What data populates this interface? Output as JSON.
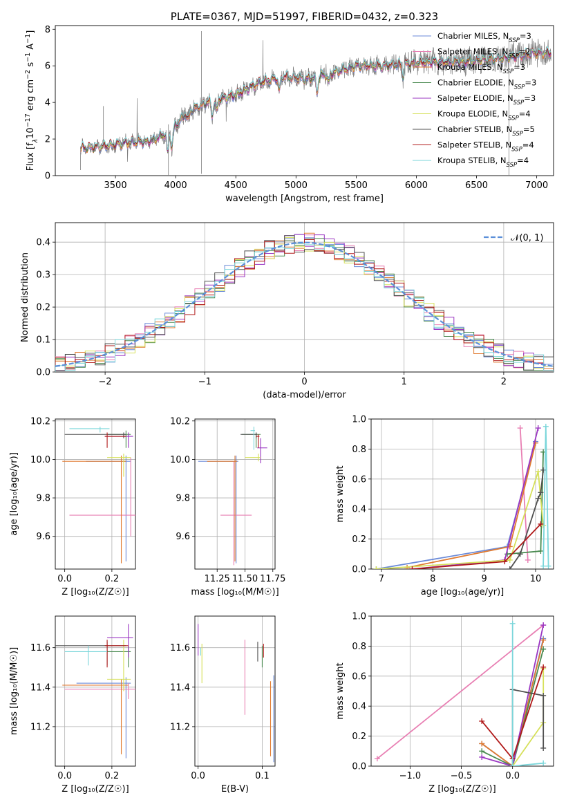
{
  "title": "PLATE=0367, MJD=51997, FIBERID=0432, z=0.323",
  "colors": {
    "Chabrier MILES": "#6a8ad8",
    "Salpeter MILES": "#e87fb3",
    "Kroupa MILES": "#e07a30",
    "Chabrier ELODIE": "#4a8a50",
    "Salpeter ELODIE": "#9a35c2",
    "Kroupa ELODIE": "#d6e05a",
    "Chabrier STELIB": "#505050",
    "Salpeter STELIB": "#b01818",
    "Kroupa STELIB": "#7ad6da",
    "data": "#7f7f7f",
    "normal": "#5b8fd9"
  },
  "chart_data": [
    {
      "id": "spectrum",
      "type": "line",
      "title": "PLATE=0367, MJD=51997, FIBERID=0432, z=0.323",
      "xlabel": "wavelength [Angstrom, rest frame]",
      "ylabel_parts": [
        "Flux [f",
        "λ",
        "10",
        "−17",
        " erg cm",
        "−2",
        " s",
        "−1",
        " A",
        "−1",
        "]"
      ],
      "xlim": [
        3000,
        7140
      ],
      "ylim": [
        0,
        8.2
      ],
      "xticks": [
        "3500",
        "4000",
        "4500",
        "5000",
        "5500",
        "6000",
        "6500",
        "7000"
      ],
      "yticks": [
        "0",
        "2",
        "4",
        "6",
        "8"
      ],
      "continuum_x": [
        3210,
        3400,
        3600,
        3800,
        3950,
        4100,
        4300,
        4500,
        4700,
        4900,
        5100,
        5300,
        5500,
        5700,
        5900,
        6100,
        6300,
        6500,
        6700,
        6800,
        7000,
        7120
      ],
      "continuum_y": [
        1.5,
        1.6,
        1.8,
        1.9,
        2.4,
        3.5,
        4.1,
        4.4,
        5.1,
        5.4,
        5.3,
        5.6,
        6.0,
        6.0,
        6.1,
        6.2,
        6.2,
        6.3,
        6.4,
        6.5,
        6.7,
        6.7
      ],
      "legend": [
        {
          "name": "Chabrier MILES",
          "parts": [
            "Chabrier MILES, N",
            "SSP",
            "=3"
          ]
        },
        {
          "name": "Salpeter MILES",
          "parts": [
            "Salpeter MILES, N",
            "SSP",
            "=2"
          ]
        },
        {
          "name": "Kroupa MILES",
          "parts": [
            "Kroupa MILES, N",
            "SSP",
            "=3"
          ]
        },
        {
          "name": "Chabrier ELODIE",
          "parts": [
            "Chabrier ELODIE, N",
            "SSP",
            "=3"
          ]
        },
        {
          "name": "Salpeter ELODIE",
          "parts": [
            "Salpeter ELODIE, N",
            "SSP",
            "=3"
          ]
        },
        {
          "name": "Kroupa ELODIE",
          "parts": [
            "Kroupa ELODIE, N",
            "SSP",
            "=4"
          ]
        },
        {
          "name": "Chabrier STELIB",
          "parts": [
            "Chabrier STELIB, N",
            "SSP",
            "=5"
          ]
        },
        {
          "name": "Salpeter STELIB",
          "parts": [
            "Salpeter STELIB, N",
            "SSP",
            "=4"
          ]
        },
        {
          "name": "Kroupa STELIB",
          "parts": [
            "Kroupa STELIB, N",
            "SSP",
            "=4"
          ]
        }
      ]
    },
    {
      "id": "residuals",
      "type": "histogram",
      "xlabel": "(data-model)/error",
      "ylabel": "Normed distribution",
      "xlim": [
        -2.5,
        2.5
      ],
      "ylim": [
        0,
        0.46
      ],
      "xticks": [
        "−2",
        "−1",
        "0",
        "1",
        "2"
      ],
      "yticks": [
        "0.0",
        "0.1",
        "0.2",
        "0.3",
        "0.4"
      ],
      "legend": "𝒩(0, 1)",
      "bin_edges_start": -2.5,
      "bin_width": 0.1,
      "bins": 50
    },
    {
      "id": "age_vs_Z",
      "type": "errorbar",
      "xlabel": "Z [log₁₀(Z/Z☉)]",
      "ylabel": "age  [log₁₀(age/yr)]",
      "xlim": [
        -0.04,
        0.3
      ],
      "ylim": [
        9.43,
        10.21
      ],
      "xticks": [
        "0.0",
        "0.2"
      ],
      "yticks": [
        "9.6",
        "9.8",
        "10.0",
        "10.2"
      ],
      "points": [
        {
          "name": "Chabrier MILES",
          "x": 0.26,
          "y": 9.99,
          "xerr": [
            0.17,
            0.02
          ],
          "yerr": [
            0.52,
            0.03
          ]
        },
        {
          "name": "Salpeter MILES",
          "x": 0.28,
          "y": 9.71,
          "xerr": [
            0.26,
            0.03
          ],
          "yerr": [
            0.11,
            0.3
          ]
        },
        {
          "name": "Kroupa MILES",
          "x": 0.24,
          "y": 9.99,
          "xerr": [
            0.25,
            0.02
          ],
          "yerr": [
            0.53,
            0.03
          ]
        },
        {
          "name": "Chabrier ELODIE",
          "x": 0.26,
          "y": 10.13,
          "xerr": [
            0.08,
            0.02
          ],
          "yerr": [
            0.07,
            0.02
          ]
        },
        {
          "name": "Salpeter ELODIE",
          "x": 0.27,
          "y": 10.12,
          "xerr": [
            0.1,
            0.02
          ],
          "yerr": [
            0.06,
            0.02
          ]
        },
        {
          "name": "Kroupa ELODIE",
          "x": 0.25,
          "y": 10.01,
          "xerr": [
            0.07,
            0.03
          ],
          "yerr": [
            0.1,
            0.02
          ]
        },
        {
          "name": "Chabrier STELIB",
          "x": 0.25,
          "y": 10.13,
          "xerr": [
            0.25,
            0.01
          ],
          "yerr": [
            0.02,
            0.01
          ]
        },
        {
          "name": "Salpeter STELIB",
          "x": 0.18,
          "y": 10.12,
          "xerr": [
            0.01,
            0.08
          ],
          "yerr": [
            0.06,
            0.02
          ]
        },
        {
          "name": "Kroupa STELIB",
          "x": 0.15,
          "y": 10.16,
          "xerr": [
            0.13,
            0.04
          ],
          "yerr": [
            0.02,
            0.01
          ]
        }
      ]
    },
    {
      "id": "age_vs_mass",
      "type": "errorbar",
      "xlabel": "mass [log₁₀(M/M☉)]",
      "ylabel": "",
      "xlim": [
        11.05,
        11.77
      ],
      "ylim": [
        9.43,
        10.21
      ],
      "xticks": [
        "11.25",
        "11.50",
        "11.75"
      ],
      "yticks": [
        "9.6",
        "9.8",
        "10.0",
        "10.2"
      ],
      "points": [
        {
          "name": "Chabrier MILES",
          "x": 11.42,
          "y": 9.99,
          "xerr": [
            0.34,
            0.02
          ],
          "yerr": [
            0.53,
            0.03
          ]
        },
        {
          "name": "Salpeter MILES",
          "x": 11.4,
          "y": 9.71,
          "xerr": [
            0.12,
            0.16
          ],
          "yerr": [
            0.26,
            0.28
          ]
        },
        {
          "name": "Kroupa MILES",
          "x": 11.41,
          "y": 9.99,
          "xerr": [
            0.25,
            0.02
          ],
          "yerr": [
            0.52,
            0.03
          ]
        },
        {
          "name": "Chabrier ELODIE",
          "x": 11.6,
          "y": 10.13,
          "xerr": [
            0.13,
            0.04
          ],
          "yerr": [
            0.07,
            0.01
          ]
        },
        {
          "name": "Salpeter ELODIE",
          "x": 11.64,
          "y": 10.06,
          "xerr": [
            0.03,
            0.06
          ],
          "yerr": [
            0.08,
            0.05
          ]
        },
        {
          "name": "Kroupa ELODIE",
          "x": 11.62,
          "y": 10.01,
          "xerr": [
            0.12,
            0.02
          ],
          "yerr": [
            0.02,
            0.02
          ]
        },
        {
          "name": "Chabrier STELIB",
          "x": 11.6,
          "y": 10.13,
          "xerr": [
            0.14,
            0.01
          ],
          "yerr": [
            0.02,
            0.01
          ]
        },
        {
          "name": "Salpeter STELIB",
          "x": 11.62,
          "y": 10.12,
          "xerr": [
            0.02,
            0.01
          ],
          "yerr": [
            0.06,
            0.01
          ]
        },
        {
          "name": "Kroupa STELIB",
          "x": 11.58,
          "y": 10.15,
          "xerr": [
            0.03,
            0.01
          ],
          "yerr": [
            0.1,
            0.02
          ]
        }
      ]
    },
    {
      "id": "massweight_vs_age",
      "type": "line",
      "xlabel": "age  [log₁₀(age/yr)]",
      "ylabel": "mass weight",
      "xlim": [
        6.8,
        10.35
      ],
      "ylim": [
        0,
        1.0
      ],
      "xticks": [
        "7",
        "8",
        "9",
        "10"
      ],
      "yticks": [
        "0.0",
        "0.2",
        "0.4",
        "0.6",
        "0.8",
        "1.0"
      ],
      "series": [
        {
          "name": "Chabrier MILES",
          "x": [
            6.9,
            9.45,
            10.0
          ],
          "y": [
            0.0,
            0.15,
            0.85
          ]
        },
        {
          "name": "Salpeter MILES",
          "x": [
            9.7,
            9.85
          ],
          "y": [
            0.94,
            0.06
          ]
        },
        {
          "name": "Kroupa MILES",
          "x": [
            7.5,
            9.5,
            10.0
          ],
          "y": [
            0.01,
            0.15,
            0.84
          ]
        },
        {
          "name": "Chabrier ELODIE",
          "x": [
            9.45,
            10.1,
            10.15
          ],
          "y": [
            0.1,
            0.12,
            0.78
          ]
        },
        {
          "name": "Salpeter ELODIE",
          "x": [
            7.6,
            9.4,
            10.05
          ],
          "y": [
            0.0,
            0.06,
            0.94
          ]
        },
        {
          "name": "Kroupa ELODIE",
          "x": [
            6.9,
            9.5,
            10.05,
            10.15
          ],
          "y": [
            0.0,
            0.06,
            0.65,
            0.29
          ]
        },
        {
          "name": "Chabrier STELIB",
          "x": [
            9.5,
            9.7,
            10.05,
            10.1,
            10.15
          ],
          "y": [
            0.0,
            0.1,
            0.47,
            0.51,
            0.66
          ]
        },
        {
          "name": "Salpeter STELIB",
          "x": [
            7.6,
            9.4,
            10.1
          ],
          "y": [
            0.0,
            0.05,
            0.3
          ]
        },
        {
          "name": "Kroupa STELIB",
          "x": [
            10.15,
            10.2,
            10.25
          ],
          "y": [
            0.02,
            0.95,
            0.02
          ]
        }
      ]
    },
    {
      "id": "mass_vs_Z",
      "type": "errorbar",
      "xlabel": "Z [log₁₀(Z/Z☉)]",
      "ylabel": "mass [log₁₀(M/M☉)]",
      "xlim": [
        -0.04,
        0.3
      ],
      "ylim": [
        11.0,
        11.76
      ],
      "xticks": [
        "0.0",
        "0.2"
      ],
      "yticks": [
        "11.2",
        "11.4",
        "11.6"
      ],
      "points": [
        {
          "name": "Chabrier MILES",
          "x": 0.26,
          "y": 11.42,
          "xerr": [
            0.21,
            0.02
          ],
          "yerr": [
            0.38,
            0.03
          ]
        },
        {
          "name": "Salpeter MILES",
          "x": 0.27,
          "y": 11.39,
          "xerr": [
            0.27,
            0.03
          ],
          "yerr": [
            0.05,
            0.03
          ]
        },
        {
          "name": "Kroupa MILES",
          "x": 0.24,
          "y": 11.41,
          "xerr": [
            0.25,
            0.03
          ],
          "yerr": [
            0.35,
            0.03
          ]
        },
        {
          "name": "Chabrier ELODIE",
          "x": 0.27,
          "y": 11.58,
          "xerr": [
            0.09,
            0.01
          ],
          "yerr": [
            0.08,
            0.03
          ]
        },
        {
          "name": "Salpeter ELODIE",
          "x": 0.27,
          "y": 11.65,
          "xerr": [
            0.09,
            0.02
          ],
          "yerr": [
            0.1,
            0.07
          ]
        },
        {
          "name": "Kroupa ELODIE",
          "x": 0.25,
          "y": 11.44,
          "xerr": [
            0.07,
            0.03
          ],
          "yerr": [
            0.06,
            0.2
          ]
        },
        {
          "name": "Chabrier STELIB",
          "x": 0.18,
          "y": 11.61,
          "xerr": [
            0.25,
            0.08
          ],
          "yerr": [
            0.1,
            0.02
          ]
        },
        {
          "name": "Salpeter STELIB",
          "x": 0.18,
          "y": 11.61,
          "xerr": [
            0.01,
            0.09
          ],
          "yerr": [
            0.11,
            0.03
          ]
        },
        {
          "name": "Kroupa STELIB",
          "x": 0.1,
          "y": 11.58,
          "xerr": [
            0.1,
            0.08
          ],
          "yerr": [
            0.07,
            0.03
          ]
        }
      ]
    },
    {
      "id": "mass_vs_EBV",
      "type": "errorbar",
      "xlabel": "E(B-V)",
      "ylabel": "",
      "xlim": [
        -0.005,
        0.12
      ],
      "ylim": [
        11.0,
        11.76
      ],
      "xticks": [
        "0.0",
        "0.1"
      ],
      "yticks": [
        "11.2",
        "11.4",
        "11.6"
      ],
      "points": [
        {
          "name": "Chabrier MILES",
          "x": 0.118,
          "y": 11.3,
          "yerr": [
            0.28,
            0.16
          ]
        },
        {
          "name": "Salpeter MILES",
          "x": 0.073,
          "y": 11.45,
          "yerr": [
            0.19,
            0.19
          ]
        },
        {
          "name": "Kroupa MILES",
          "x": 0.113,
          "y": 11.25,
          "yerr": [
            0.2,
            0.18
          ]
        },
        {
          "name": "Chabrier ELODIE",
          "x": 0.1,
          "y": 11.55,
          "yerr": [
            0.05,
            0.06
          ]
        },
        {
          "name": "Salpeter ELODIE",
          "x": 0.0,
          "y": 11.64,
          "yerr": [
            0.08,
            0.08
          ]
        },
        {
          "name": "Kroupa ELODIE",
          "x": 0.006,
          "y": 11.52,
          "yerr": [
            0.1,
            0.1
          ]
        },
        {
          "name": "Chabrier STELIB",
          "x": 0.093,
          "y": 11.58,
          "yerr": [
            0.05,
            0.05
          ]
        },
        {
          "name": "Salpeter STELIB",
          "x": 0.102,
          "y": 11.58,
          "yerr": [
            0.03,
            0.04
          ]
        },
        {
          "name": "Kroupa STELIB",
          "x": 0.004,
          "y": 11.58,
          "yerr": [
            0.02,
            0.02
          ]
        }
      ]
    },
    {
      "id": "massweight_vs_Z",
      "type": "line",
      "xlabel": "Z [log₁₀(Z/Z☉)]",
      "ylabel": "mass weight",
      "xlim": [
        -1.38,
        0.4
      ],
      "ylim": [
        0,
        1.0
      ],
      "xticks": [
        "−1.0",
        "−0.5",
        "0.0"
      ],
      "yticks": [
        "0.0",
        "0.2",
        "0.4",
        "0.6",
        "0.8",
        "1.0"
      ],
      "series": [
        {
          "name": "Chabrier MILES",
          "x": [
            -0.3,
            0.0,
            0.3
          ],
          "y": [
            0.15,
            0.0,
            0.85
          ]
        },
        {
          "name": "Salpeter MILES",
          "x": [
            -1.32,
            0.3
          ],
          "y": [
            0.05,
            0.94
          ]
        },
        {
          "name": "Kroupa MILES",
          "x": [
            -0.3,
            0.0,
            0.3
          ],
          "y": [
            0.15,
            0.0,
            0.84
          ]
        },
        {
          "name": "Chabrier ELODIE",
          "x": [
            -0.3,
            0.0,
            0.3
          ],
          "y": [
            0.1,
            0.0,
            0.78
          ]
        },
        {
          "name": "Salpeter ELODIE",
          "x": [
            -0.3,
            0.0,
            0.3
          ],
          "y": [
            0.06,
            0.0,
            0.94
          ]
        },
        {
          "name": "Kroupa ELODIE",
          "x": [
            0.0,
            0.3,
            0.3
          ],
          "y": [
            0.0,
            0.29,
            0.65
          ]
        },
        {
          "name": "Chabrier STELIB",
          "x": [
            0.0,
            0.0,
            0.3,
            0.3
          ],
          "y": [
            0.0,
            0.51,
            0.47,
            0.12
          ]
        },
        {
          "name": "Salpeter STELIB",
          "x": [
            -0.3,
            0.0,
            0.3
          ],
          "y": [
            0.3,
            0.05,
            0.66
          ]
        },
        {
          "name": "Kroupa STELIB",
          "x": [
            0.0,
            0.0,
            0.3
          ],
          "y": [
            0.95,
            0.0,
            0.02
          ]
        }
      ]
    }
  ]
}
